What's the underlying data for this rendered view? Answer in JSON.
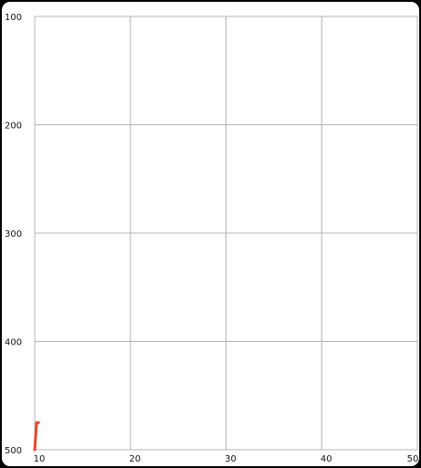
{
  "chart_data": {
    "type": "line",
    "title": "",
    "xlabel": "",
    "ylabel": "",
    "x_ticks": [
      "10",
      "20",
      "30",
      "40",
      "50"
    ],
    "y_ticks": [
      "100",
      "200",
      "300",
      "400",
      "500"
    ],
    "xlim": [
      10,
      50
    ],
    "ylim": [
      100,
      500
    ],
    "y_inverted": true,
    "grid": true,
    "legend": "none",
    "series": [
      {
        "x": [
          10,
          10.2,
          10.4
        ],
        "y": [
          500,
          475,
          475
        ],
        "color": "#e8472b"
      }
    ]
  },
  "colors": {
    "background": "#ffffff",
    "frame": "#000000",
    "grid": "#b4b4b4",
    "line": "#e8472b"
  }
}
